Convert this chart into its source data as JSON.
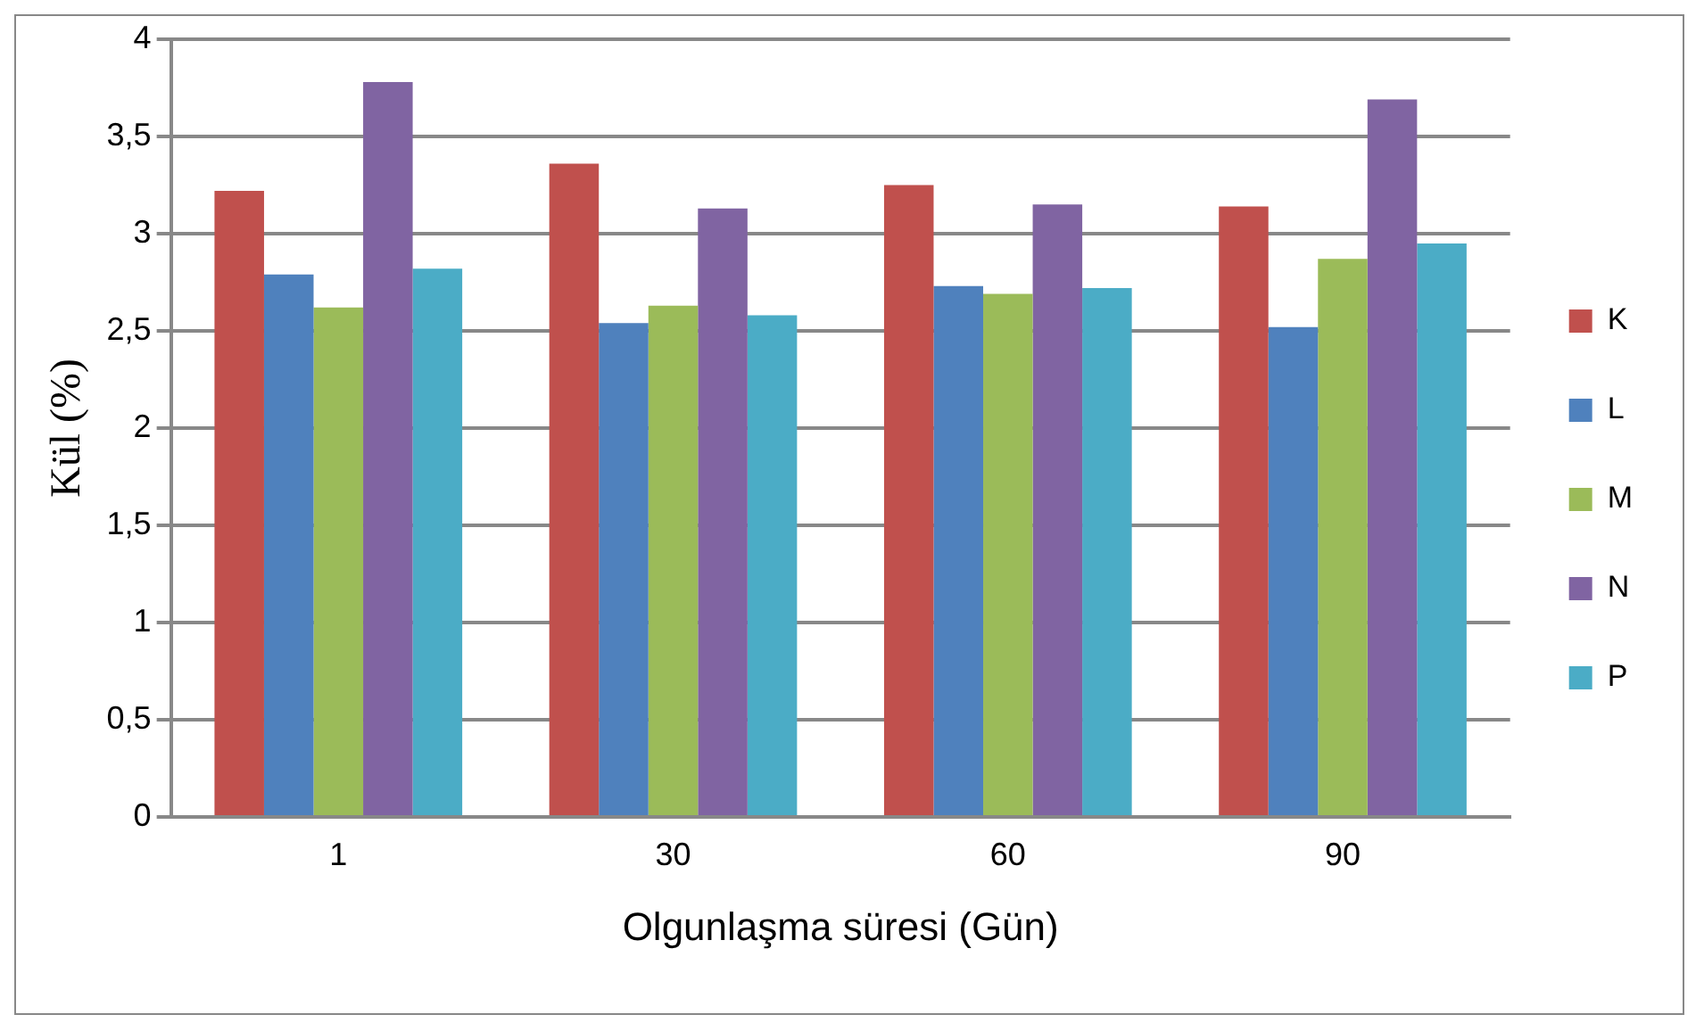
{
  "chart_data": {
    "type": "bar",
    "xlabel": "Olgunlaşma süresi (Gün)",
    "ylabel": "Kül (%)",
    "categories": [
      "1",
      "30",
      "60",
      "90"
    ],
    "series": [
      {
        "name": "K",
        "color": "#c0504d",
        "values": [
          3.22,
          3.36,
          3.25,
          3.14
        ]
      },
      {
        "name": "L",
        "color": "#4f81bd",
        "values": [
          2.79,
          2.54,
          2.73,
          2.52
        ]
      },
      {
        "name": "M",
        "color": "#9bbb59",
        "values": [
          2.62,
          2.63,
          2.69,
          2.87
        ]
      },
      {
        "name": "N",
        "color": "#8064a2",
        "values": [
          3.78,
          3.13,
          3.15,
          3.69
        ]
      },
      {
        "name": "P",
        "color": "#4bacc6",
        "values": [
          2.82,
          2.58,
          2.72,
          2.95
        ]
      }
    ],
    "ylim": [
      0,
      4
    ],
    "yticks": [
      {
        "value": 0,
        "label": "0"
      },
      {
        "value": 0.5,
        "label": "0,5"
      },
      {
        "value": 1,
        "label": "1"
      },
      {
        "value": 1.5,
        "label": "1,5"
      },
      {
        "value": 2,
        "label": "2"
      },
      {
        "value": 2.5,
        "label": "2,5"
      },
      {
        "value": 3,
        "label": "3"
      },
      {
        "value": 3.5,
        "label": "3,5"
      },
      {
        "value": 4,
        "label": "4"
      }
    ],
    "grid": "y",
    "legend": "right"
  }
}
